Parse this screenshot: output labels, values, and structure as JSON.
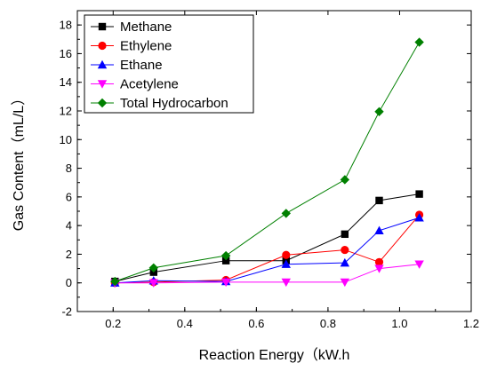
{
  "chart_data": {
    "type": "line",
    "xlabel": "Reaction Energy（kW.h",
    "ylabel": "Gas Content（mL/L）",
    "xlim": [
      0.1,
      1.2
    ],
    "ylim": [
      -2,
      19
    ],
    "x_ticks": [
      "0.2",
      "0.4",
      "0.6",
      "0.8",
      "1.0",
      "1.2"
    ],
    "y_ticks": [
      "-2",
      "0",
      "2",
      "4",
      "6",
      "8",
      "10",
      "12",
      "14",
      "16",
      "18"
    ],
    "legend_position": "top-left",
    "x": [
      0.205,
      0.313,
      0.515,
      0.683,
      0.847,
      0.943,
      1.055
    ],
    "series": [
      {
        "name": "Methane",
        "color": "#000000",
        "marker": "square",
        "values": [
          0.1,
          0.75,
          1.55,
          1.55,
          3.4,
          5.75,
          6.2
        ]
      },
      {
        "name": "Ethylene",
        "color": "#ff0000",
        "marker": "circle",
        "values": [
          0.0,
          0.05,
          0.2,
          1.95,
          2.3,
          1.45,
          4.75
        ]
      },
      {
        "name": "Ethane",
        "color": "#0000ff",
        "marker": "triangle-up",
        "values": [
          0.0,
          0.15,
          0.1,
          1.3,
          1.4,
          3.65,
          4.55
        ]
      },
      {
        "name": "Acetylene",
        "color": "#ff00ff",
        "marker": "triangle-down",
        "values": [
          0.0,
          0.0,
          0.05,
          0.05,
          0.05,
          1.0,
          1.3
        ]
      },
      {
        "name": "Total Hydrocarbon",
        "color": "#008000",
        "marker": "diamond",
        "values": [
          0.1,
          1.05,
          1.9,
          4.85,
          7.2,
          11.95,
          16.8
        ]
      }
    ]
  }
}
